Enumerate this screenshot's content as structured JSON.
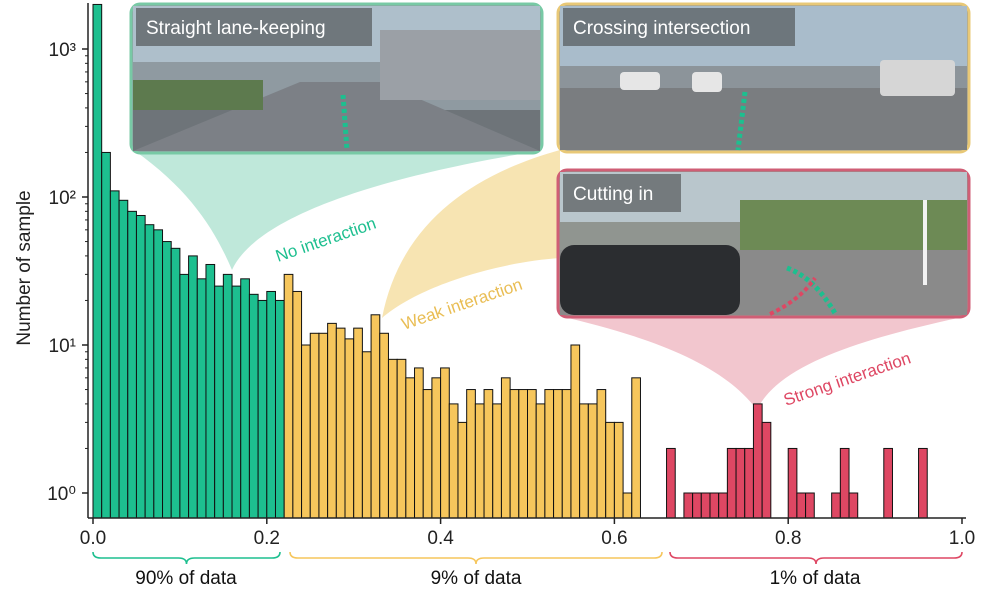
{
  "colors": {
    "no": "#1dbf8f",
    "weak": "#f6c65c",
    "strong": "#de4763",
    "no_light": "#bfe8da",
    "weak_light": "#f7e4b2",
    "strong_light": "#f2c6ce",
    "no_border": "#78c9a5",
    "weak_border": "#e8c877",
    "strong_border": "#cf5e75"
  },
  "chart_data": {
    "type": "bar",
    "title": "",
    "xlabel": "",
    "ylabel": "Number of sample",
    "y_scale": "log",
    "xlim": [
      0.0,
      1.0
    ],
    "ylim": [
      1,
      2000
    ],
    "x_ticks": [
      "0.0",
      "0.2",
      "0.4",
      "0.6",
      "0.8",
      "1.0"
    ],
    "y_ticks": [
      "10⁰",
      "10¹",
      "10²",
      "10³"
    ],
    "bin_width": 0.01,
    "series": [
      {
        "name": "No interaction",
        "color": "#1dbf8f",
        "x": [
          0.0,
          0.01,
          0.02,
          0.03,
          0.04,
          0.05,
          0.06,
          0.07,
          0.08,
          0.09,
          0.1,
          0.11,
          0.12,
          0.13,
          0.14,
          0.15,
          0.16,
          0.17,
          0.18,
          0.19,
          0.2,
          0.21
        ],
        "values": [
          2000,
          200,
          110,
          95,
          80,
          75,
          65,
          60,
          50,
          45,
          30,
          40,
          28,
          35,
          25,
          30,
          25,
          28,
          22,
          20,
          23,
          20
        ]
      },
      {
        "name": "Weak interaction",
        "color": "#f6c65c",
        "x": [
          0.22,
          0.23,
          0.24,
          0.25,
          0.26,
          0.27,
          0.28,
          0.29,
          0.3,
          0.31,
          0.32,
          0.33,
          0.34,
          0.35,
          0.36,
          0.37,
          0.38,
          0.39,
          0.4,
          0.41,
          0.42,
          0.43,
          0.44,
          0.45,
          0.46,
          0.47,
          0.48,
          0.49,
          0.5,
          0.51,
          0.52,
          0.53,
          0.54,
          0.55,
          0.56,
          0.57,
          0.58,
          0.59,
          0.6,
          0.61,
          0.62,
          0.63,
          0.64,
          0.65
        ],
        "values": [
          30,
          23,
          10,
          12,
          12,
          14,
          13,
          11,
          13,
          9,
          16,
          12,
          8,
          8,
          6,
          7,
          5,
          6,
          7,
          4,
          3,
          5,
          4,
          5,
          4,
          6,
          5,
          5,
          5,
          4,
          5,
          5,
          5,
          10,
          4,
          4,
          5,
          3,
          3,
          1,
          6,
          0,
          0,
          0
        ]
      },
      {
        "name": "Strong interaction",
        "color": "#de4763",
        "x": [
          0.66,
          0.67,
          0.68,
          0.69,
          0.7,
          0.71,
          0.72,
          0.73,
          0.74,
          0.75,
          0.76,
          0.77,
          0.78,
          0.79,
          0.8,
          0.81,
          0.82,
          0.83,
          0.84,
          0.85,
          0.86,
          0.87,
          0.88,
          0.89,
          0.9,
          0.91,
          0.92,
          0.93,
          0.94,
          0.95,
          0.96,
          0.97,
          0.98,
          0.99
        ],
        "values": [
          2,
          0,
          1,
          1,
          1,
          1,
          1,
          2,
          2,
          2,
          4,
          3,
          0,
          0,
          2,
          1,
          1,
          0,
          0,
          1,
          2,
          1,
          0,
          0,
          0,
          2,
          0,
          0,
          0,
          2,
          0,
          0,
          0,
          0
        ]
      }
    ]
  },
  "annotations": {
    "no_label": "No interaction",
    "weak_label": "Weak interaction",
    "strong_label": "Strong interaction"
  },
  "braces": {
    "no": "90% of data",
    "weak": "9% of data",
    "strong": "1% of data"
  },
  "panels": {
    "straight": "Straight lane-keeping",
    "crossing": "Crossing intersection",
    "cutting": "Cutting in"
  }
}
